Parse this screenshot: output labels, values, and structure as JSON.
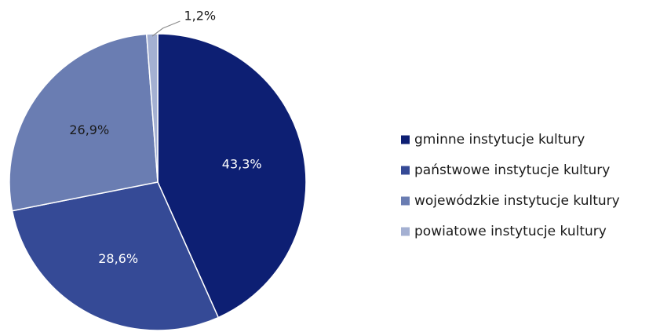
{
  "chart_data": {
    "type": "pie",
    "title": "",
    "categories": [
      "gminne instytucje kultury",
      "państwowe instytucje kultury",
      "wojewódzkie instytucje kultury",
      "powiatowe instytucje kultury"
    ],
    "values": [
      43.3,
      28.6,
      26.9,
      1.2
    ],
    "labels": [
      "43,3%",
      "28,6%",
      "26,9%",
      "1,2%"
    ],
    "colors": [
      "#0d1f73",
      "#354a96",
      "#6a7db2",
      "#a4b0d2"
    ],
    "label_colors": [
      "#ffffff",
      "#ffffff",
      "#1a1a1a",
      "#1a1a1a"
    ],
    "start_angle_deg": 0,
    "direction": "clockwise",
    "legend": {
      "placement": "right",
      "entries": [
        "gminne instytucje kultury",
        "państwowe instytucje kultury",
        "wojewódzkie instytucje kultury",
        "powiatowe instytucje kultury"
      ]
    }
  }
}
